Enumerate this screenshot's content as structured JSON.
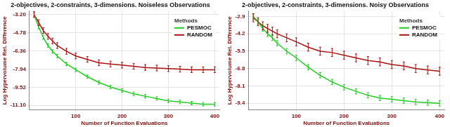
{
  "chart_data": [
    {
      "type": "line",
      "title": "2-objectives, 2-constraints, 3-dimensions. Noiseless Observations",
      "x_label": "Number of Function Evaluations",
      "y_label": "Log Hypervolume Rel. Difference",
      "legend_title": "Methods",
      "legend": "upper right",
      "grid": true,
      "x": [
        10,
        20,
        30,
        40,
        50,
        60,
        80,
        100,
        125,
        150,
        175,
        200,
        225,
        250,
        275,
        300,
        325,
        350,
        375,
        400
      ],
      "xlim": [
        0,
        410
      ],
      "xticks": [
        100,
        200,
        300,
        400
      ],
      "ylim": [
        -11.5,
        -2.9
      ],
      "yticks": [
        {
          "value": -3.2,
          "label": "-3.20"
        },
        {
          "value": -4.78,
          "label": "-4.78"
        },
        {
          "value": -6.36,
          "label": "-6.36"
        },
        {
          "value": -7.94,
          "label": "-7.94"
        },
        {
          "value": -9.52,
          "label": "-9.52"
        },
        {
          "value": -11.1,
          "label": "-11.10"
        }
      ],
      "series": [
        {
          "name": "PESMOC",
          "color": "#22cc22",
          "values": [
            -3.2,
            -4.3,
            -5.2,
            -5.9,
            -6.4,
            -6.8,
            -7.5,
            -8.0,
            -8.6,
            -9.1,
            -9.5,
            -9.8,
            -10.1,
            -10.3,
            -10.5,
            -10.7,
            -10.8,
            -10.9,
            -11.0,
            -11.0
          ],
          "errors": [
            0.15,
            0.15,
            0.15,
            0.15,
            0.15,
            0.15,
            0.15,
            0.15,
            0.15,
            0.15,
            0.15,
            0.15,
            0.15,
            0.15,
            0.15,
            0.15,
            0.15,
            0.15,
            0.15,
            0.15
          ]
        },
        {
          "name": "RANDOM",
          "color": "#aa1111",
          "values": [
            -3.2,
            -3.9,
            -4.6,
            -5.1,
            -5.5,
            -5.9,
            -6.4,
            -6.8,
            -7.1,
            -7.4,
            -7.5,
            -7.6,
            -7.7,
            -7.8,
            -7.85,
            -7.9,
            -7.95,
            -8.0,
            -8.0,
            -8.0
          ],
          "errors": [
            0.25,
            0.25,
            0.25,
            0.25,
            0.25,
            0.25,
            0.25,
            0.25,
            0.25,
            0.25,
            0.25,
            0.25,
            0.25,
            0.25,
            0.25,
            0.25,
            0.25,
            0.25,
            0.25,
            0.25
          ]
        }
      ]
    },
    {
      "type": "line",
      "title": "2-objectives, 2-constraints, 3-dimensions. Noisy Observations",
      "x_label": "Number of Function Evaluations",
      "y_label": "Log Hypervolume Rel. Difference",
      "legend_title": "Methods",
      "legend": "upper right",
      "grid": true,
      "x": [
        10,
        20,
        30,
        40,
        50,
        60,
        80,
        100,
        125,
        150,
        175,
        200,
        225,
        250,
        275,
        300,
        325,
        350,
        375,
        400
      ],
      "xlim": [
        0,
        410
      ],
      "xticks": [
        100,
        200,
        300,
        400
      ],
      "ylim": [
        -9.9,
        -2.5
      ],
      "yticks": [
        -2.9,
        -4.2,
        -5.5,
        -6.8,
        -8.1,
        -9.4
      ],
      "series": [
        {
          "name": "PESMOC",
          "color": "#22cc22",
          "values": [
            -2.9,
            -3.3,
            -3.8,
            -4.2,
            -4.5,
            -4.9,
            -5.5,
            -6.0,
            -6.7,
            -7.3,
            -7.8,
            -8.2,
            -8.5,
            -8.8,
            -9.0,
            -9.1,
            -9.2,
            -9.3,
            -9.35,
            -9.4
          ],
          "errors": [
            0.2,
            0.2,
            0.2,
            0.2,
            0.2,
            0.2,
            0.2,
            0.2,
            0.2,
            0.2,
            0.2,
            0.2,
            0.2,
            0.2,
            0.2,
            0.2,
            0.2,
            0.2,
            0.2,
            0.2
          ]
        },
        {
          "name": "RANDOM",
          "color": "#aa1111",
          "values": [
            -3.0,
            -3.3,
            -3.6,
            -3.8,
            -4.0,
            -4.2,
            -4.5,
            -4.8,
            -5.2,
            -5.5,
            -5.6,
            -5.8,
            -6.0,
            -6.2,
            -6.3,
            -6.5,
            -6.6,
            -6.8,
            -6.9,
            -7.0
          ],
          "errors": [
            0.3,
            0.3,
            0.3,
            0.3,
            0.3,
            0.3,
            0.3,
            0.3,
            0.3,
            0.3,
            0.3,
            0.3,
            0.3,
            0.3,
            0.3,
            0.3,
            0.3,
            0.3,
            0.3,
            0.3
          ]
        }
      ]
    }
  ]
}
